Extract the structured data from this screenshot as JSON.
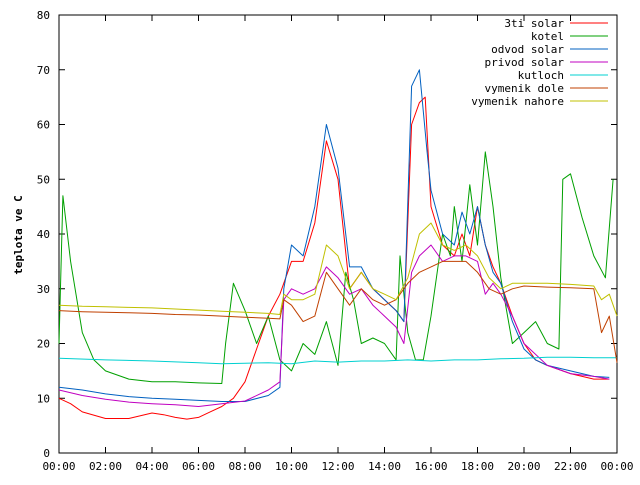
{
  "chart_data": {
    "type": "line",
    "title": "",
    "xlabel": "",
    "ylabel": "teplota ve C",
    "xlim": [
      "00:00",
      "24:00"
    ],
    "ylim": [
      0,
      80
    ],
    "x_ticks": [
      "00:00",
      "02:00",
      "04:00",
      "06:00",
      "08:00",
      "10:00",
      "12:00",
      "14:00",
      "16:00",
      "18:00",
      "20:00",
      "22:00",
      "00:00"
    ],
    "y_ticks": [
      0,
      10,
      20,
      30,
      40,
      50,
      60,
      70,
      80
    ],
    "grid": false,
    "legend_position": "top-right",
    "series": [
      {
        "name": "3ti solar",
        "color": "#ff0000",
        "points": [
          [
            "00:00",
            10
          ],
          [
            "00:30",
            9
          ],
          [
            "01:00",
            7.5
          ],
          [
            "02:00",
            6.3
          ],
          [
            "03:00",
            6.3
          ],
          [
            "04:00",
            7.3
          ],
          [
            "04:30",
            7
          ],
          [
            "05:00",
            6.5
          ],
          [
            "05:30",
            6.2
          ],
          [
            "06:00",
            6.5
          ],
          [
            "06:30",
            7.5
          ],
          [
            "07:00",
            8.5
          ],
          [
            "07:30",
            10
          ],
          [
            "08:00",
            13
          ],
          [
            "08:30",
            19
          ],
          [
            "09:00",
            25
          ],
          [
            "09:30",
            29
          ],
          [
            "10:00",
            35
          ],
          [
            "10:30",
            35
          ],
          [
            "11:00",
            42
          ],
          [
            "11:30",
            57
          ],
          [
            "12:00",
            50
          ],
          [
            "12:30",
            30
          ],
          [
            "13:00",
            33
          ],
          [
            "13:30",
            30
          ],
          [
            "14:00",
            28
          ],
          [
            "14:30",
            26
          ],
          [
            "14:50",
            24
          ],
          [
            "15:10",
            60
          ],
          [
            "15:30",
            64
          ],
          [
            "15:45",
            65
          ],
          [
            "16:00",
            45
          ],
          [
            "16:30",
            38
          ],
          [
            "17:00",
            36
          ],
          [
            "17:20",
            40
          ],
          [
            "17:40",
            36
          ],
          [
            "18:00",
            45
          ],
          [
            "18:20",
            38
          ],
          [
            "18:40",
            34
          ],
          [
            "19:00",
            31
          ],
          [
            "19:30",
            25
          ],
          [
            "20:00",
            20
          ],
          [
            "20:30",
            17
          ],
          [
            "21:00",
            16
          ],
          [
            "22:00",
            14.5
          ],
          [
            "23:00",
            13.5
          ],
          [
            "23:40",
            13.5
          ]
        ]
      },
      {
        "name": "kotel",
        "color": "#00a000",
        "points": [
          [
            "00:00",
            20
          ],
          [
            "00:10",
            47
          ],
          [
            "00:30",
            35
          ],
          [
            "01:00",
            22
          ],
          [
            "01:30",
            17
          ],
          [
            "02:00",
            15
          ],
          [
            "03:00",
            13.5
          ],
          [
            "04:00",
            13
          ],
          [
            "05:00",
            13
          ],
          [
            "06:00",
            12.8
          ],
          [
            "07:00",
            12.7
          ],
          [
            "07:10",
            20
          ],
          [
            "07:30",
            31
          ],
          [
            "08:00",
            26
          ],
          [
            "08:30",
            20
          ],
          [
            "09:00",
            25
          ],
          [
            "09:30",
            17
          ],
          [
            "10:00",
            15
          ],
          [
            "10:30",
            20
          ],
          [
            "11:00",
            18
          ],
          [
            "11:30",
            24
          ],
          [
            "12:00",
            16
          ],
          [
            "12:20",
            33
          ],
          [
            "12:40",
            28
          ],
          [
            "13:00",
            20
          ],
          [
            "13:30",
            21
          ],
          [
            "14:00",
            20
          ],
          [
            "14:30",
            17
          ],
          [
            "14:40",
            36
          ],
          [
            "15:00",
            22
          ],
          [
            "15:20",
            17
          ],
          [
            "15:40",
            17
          ],
          [
            "16:00",
            25
          ],
          [
            "16:30",
            40
          ],
          [
            "16:50",
            36
          ],
          [
            "17:00",
            45
          ],
          [
            "17:20",
            35
          ],
          [
            "17:40",
            49
          ],
          [
            "18:00",
            38
          ],
          [
            "18:20",
            55
          ],
          [
            "18:40",
            45
          ],
          [
            "19:00",
            32
          ],
          [
            "19:30",
            20
          ],
          [
            "20:00",
            22
          ],
          [
            "20:30",
            24
          ],
          [
            "21:00",
            20
          ],
          [
            "21:30",
            19
          ],
          [
            "21:40",
            50
          ],
          [
            "22:00",
            51
          ],
          [
            "22:30",
            43
          ],
          [
            "23:00",
            36
          ],
          [
            "23:30",
            32
          ],
          [
            "23:50",
            50
          ]
        ]
      },
      {
        "name": "odvod solar",
        "color": "#0060c0",
        "points": [
          [
            "00:00",
            12
          ],
          [
            "01:00",
            11.5
          ],
          [
            "02:00",
            10.8
          ],
          [
            "03:00",
            10.3
          ],
          [
            "04:00",
            10
          ],
          [
            "05:00",
            9.8
          ],
          [
            "06:00",
            9.6
          ],
          [
            "07:00",
            9.4
          ],
          [
            "08:00",
            9.4
          ],
          [
            "09:00",
            10.5
          ],
          [
            "09:30",
            12
          ],
          [
            "09:40",
            30
          ],
          [
            "10:00",
            38
          ],
          [
            "10:30",
            36
          ],
          [
            "11:00",
            45
          ],
          [
            "11:30",
            60
          ],
          [
            "12:00",
            52
          ],
          [
            "12:30",
            34
          ],
          [
            "13:00",
            34
          ],
          [
            "13:30",
            30
          ],
          [
            "14:00",
            28
          ],
          [
            "14:30",
            26
          ],
          [
            "14:50",
            24
          ],
          [
            "15:10",
            67
          ],
          [
            "15:30",
            70
          ],
          [
            "15:50",
            55
          ],
          [
            "16:00",
            48
          ],
          [
            "16:30",
            40
          ],
          [
            "17:00",
            38
          ],
          [
            "17:20",
            44
          ],
          [
            "17:40",
            40
          ],
          [
            "18:00",
            45
          ],
          [
            "18:20",
            38
          ],
          [
            "18:40",
            33
          ],
          [
            "19:00",
            31
          ],
          [
            "19:30",
            24
          ],
          [
            "20:00",
            19
          ],
          [
            "20:30",
            17
          ],
          [
            "21:00",
            16
          ],
          [
            "22:00",
            15
          ],
          [
            "23:00",
            14
          ],
          [
            "23:40",
            13.8
          ]
        ]
      },
      {
        "name": "privod solar",
        "color": "#c000c0",
        "points": [
          [
            "00:00",
            11.5
          ],
          [
            "01:00",
            10.5
          ],
          [
            "02:00",
            9.8
          ],
          [
            "03:00",
            9.3
          ],
          [
            "04:00",
            9
          ],
          [
            "05:00",
            8.8
          ],
          [
            "06:00",
            8.5
          ],
          [
            "07:00",
            9
          ],
          [
            "08:00",
            9.5
          ],
          [
            "09:00",
            11.5
          ],
          [
            "09:30",
            13
          ],
          [
            "09:40",
            28
          ],
          [
            "10:00",
            30
          ],
          [
            "10:30",
            29
          ],
          [
            "11:00",
            30
          ],
          [
            "11:30",
            34
          ],
          [
            "12:00",
            32
          ],
          [
            "12:30",
            29
          ],
          [
            "13:00",
            30
          ],
          [
            "13:30",
            27
          ],
          [
            "14:00",
            25
          ],
          [
            "14:30",
            23
          ],
          [
            "14:50",
            20
          ],
          [
            "15:10",
            33
          ],
          [
            "15:30",
            36
          ],
          [
            "16:00",
            38
          ],
          [
            "16:30",
            35
          ],
          [
            "17:00",
            36
          ],
          [
            "17:30",
            36
          ],
          [
            "18:00",
            35
          ],
          [
            "18:20",
            29
          ],
          [
            "18:40",
            31
          ],
          [
            "19:00",
            29
          ],
          [
            "19:30",
            25
          ],
          [
            "20:00",
            20
          ],
          [
            "21:00",
            16
          ],
          [
            "22:00",
            14.5
          ],
          [
            "23:00",
            14
          ],
          [
            "23:40",
            13.5
          ]
        ]
      },
      {
        "name": "kutloch",
        "color": "#00d0d0",
        "points": [
          [
            "00:00",
            17.3
          ],
          [
            "02:00",
            17
          ],
          [
            "04:00",
            16.8
          ],
          [
            "06:00",
            16.5
          ],
          [
            "07:00",
            16.3
          ],
          [
            "08:00",
            16.4
          ],
          [
            "09:00",
            16.5
          ],
          [
            "10:00",
            16.3
          ],
          [
            "11:00",
            16.8
          ],
          [
            "12:00",
            16.6
          ],
          [
            "13:00",
            16.8
          ],
          [
            "14:00",
            16.8
          ],
          [
            "15:00",
            17
          ],
          [
            "16:00",
            16.8
          ],
          [
            "17:00",
            17
          ],
          [
            "18:00",
            17
          ],
          [
            "19:00",
            17.2
          ],
          [
            "20:00",
            17.3
          ],
          [
            "21:00",
            17.5
          ],
          [
            "22:00",
            17.5
          ],
          [
            "23:00",
            17.4
          ],
          [
            "24:00",
            17.4
          ]
        ]
      },
      {
        "name": "vymenik dole",
        "color": "#c04000",
        "points": [
          [
            "00:00",
            26
          ],
          [
            "01:00",
            25.8
          ],
          [
            "02:00",
            25.7
          ],
          [
            "03:00",
            25.6
          ],
          [
            "04:00",
            25.5
          ],
          [
            "05:00",
            25.3
          ],
          [
            "06:00",
            25.2
          ],
          [
            "07:00",
            25
          ],
          [
            "08:00",
            24.8
          ],
          [
            "09:00",
            24.6
          ],
          [
            "09:30",
            24.5
          ],
          [
            "09:40",
            28
          ],
          [
            "10:00",
            27
          ],
          [
            "10:30",
            24
          ],
          [
            "11:00",
            25
          ],
          [
            "11:30",
            33
          ],
          [
            "12:00",
            30
          ],
          [
            "12:30",
            27
          ],
          [
            "13:00",
            30
          ],
          [
            "13:30",
            28
          ],
          [
            "14:00",
            27
          ],
          [
            "14:30",
            28
          ],
          [
            "15:00",
            31
          ],
          [
            "15:30",
            33
          ],
          [
            "16:00",
            34
          ],
          [
            "16:30",
            35
          ],
          [
            "17:00",
            35
          ],
          [
            "17:30",
            35
          ],
          [
            "18:00",
            33
          ],
          [
            "18:30",
            30
          ],
          [
            "19:00",
            29
          ],
          [
            "19:30",
            30
          ],
          [
            "20:00",
            30.5
          ],
          [
            "21:00",
            30.3
          ],
          [
            "22:00",
            30.2
          ],
          [
            "23:00",
            30
          ],
          [
            "23:20",
            22
          ],
          [
            "23:40",
            25
          ],
          [
            "24:00",
            16.5
          ]
        ]
      },
      {
        "name": "vymenik nahore",
        "color": "#c0c000",
        "points": [
          [
            "00:00",
            27
          ],
          [
            "01:00",
            26.8
          ],
          [
            "02:00",
            26.7
          ],
          [
            "03:00",
            26.6
          ],
          [
            "04:00",
            26.5
          ],
          [
            "05:00",
            26.3
          ],
          [
            "06:00",
            26.1
          ],
          [
            "07:00",
            25.9
          ],
          [
            "08:00",
            25.7
          ],
          [
            "09:00",
            25.5
          ],
          [
            "09:30",
            25.3
          ],
          [
            "09:40",
            29
          ],
          [
            "10:00",
            28
          ],
          [
            "10:30",
            28
          ],
          [
            "11:00",
            29
          ],
          [
            "11:30",
            38
          ],
          [
            "12:00",
            36
          ],
          [
            "12:30",
            30
          ],
          [
            "13:00",
            33
          ],
          [
            "13:30",
            30
          ],
          [
            "14:00",
            29
          ],
          [
            "14:30",
            28
          ],
          [
            "15:00",
            32
          ],
          [
            "15:30",
            40
          ],
          [
            "16:00",
            42
          ],
          [
            "16:30",
            38
          ],
          [
            "17:00",
            37
          ],
          [
            "17:30",
            38
          ],
          [
            "18:00",
            36
          ],
          [
            "18:30",
            32
          ],
          [
            "19:00",
            30
          ],
          [
            "19:30",
            31
          ],
          [
            "20:00",
            31
          ],
          [
            "21:00",
            31
          ],
          [
            "22:00",
            30.8
          ],
          [
            "23:00",
            30.5
          ],
          [
            "23:20",
            28
          ],
          [
            "23:40",
            29
          ],
          [
            "24:00",
            25
          ]
        ]
      }
    ]
  }
}
